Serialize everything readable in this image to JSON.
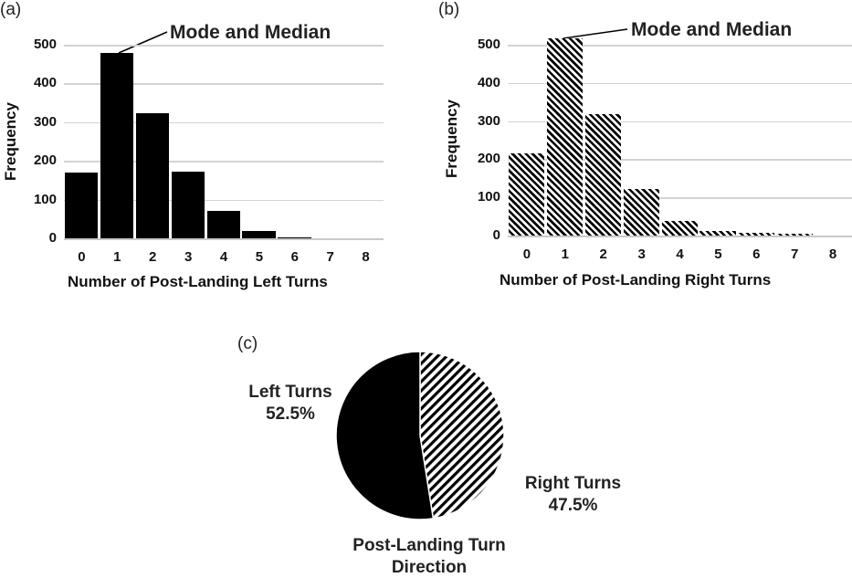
{
  "chart_data": [
    {
      "panel": "(a)",
      "type": "bar",
      "title": "",
      "xlabel": "Number of Post-Landing Left Turns",
      "ylabel": "Frequency",
      "categories": [
        "0",
        "1",
        "2",
        "3",
        "4",
        "5",
        "6",
        "7",
        "8"
      ],
      "values": [
        170,
        479,
        323,
        172,
        71,
        18,
        2,
        0,
        0
      ],
      "yticks": [
        "0",
        "100",
        "200",
        "300",
        "400",
        "500"
      ],
      "ylim": [
        0,
        500
      ],
      "grid": true,
      "fill": "solid black",
      "annotation": {
        "text": "Mode and Median",
        "points_to": "1"
      }
    },
    {
      "panel": "(b)",
      "type": "bar",
      "title": "",
      "xlabel": "Number of Post-Landing Right Turns",
      "ylabel": "Frequency",
      "categories": [
        "0",
        "1",
        "2",
        "3",
        "4",
        "5",
        "6",
        "7",
        "8"
      ],
      "values": [
        215,
        516,
        318,
        122,
        38,
        13,
        8,
        4,
        0
      ],
      "yticks": [
        "0",
        "100",
        "200",
        "300",
        "400",
        "500"
      ],
      "ylim": [
        0,
        500
      ],
      "grid": true,
      "fill": "diagonal hatch",
      "annotation": {
        "text": "Mode and Median",
        "points_to": "1"
      }
    },
    {
      "panel": "(c)",
      "type": "pie",
      "title": "Post-Landing Turn Direction",
      "slices": [
        {
          "label": "Left Turns",
          "value": 52.5,
          "display": "52.5%",
          "fill": "solid black"
        },
        {
          "label": "Right Turns",
          "value": 47.5,
          "display": "47.5%",
          "fill": "diagonal hatch"
        }
      ]
    }
  ],
  "panels": {
    "a": {
      "label": "(a)",
      "annotation": "Mode and Median",
      "xlabel": "Number of Post-Landing Left Turns",
      "ylabel": "Frequency"
    },
    "b": {
      "label": "(b)",
      "annotation": "Mode and Median",
      "xlabel": "Number of Post-Landing Right Turns",
      "ylabel": "Frequency"
    },
    "c": {
      "label": "(c)",
      "left_label": "Left Turns",
      "left_pct": "52.5%",
      "right_label": "Right Turns",
      "right_pct": "47.5%",
      "title_line1": "Post-Landing Turn",
      "title_line2": "Direction"
    }
  }
}
